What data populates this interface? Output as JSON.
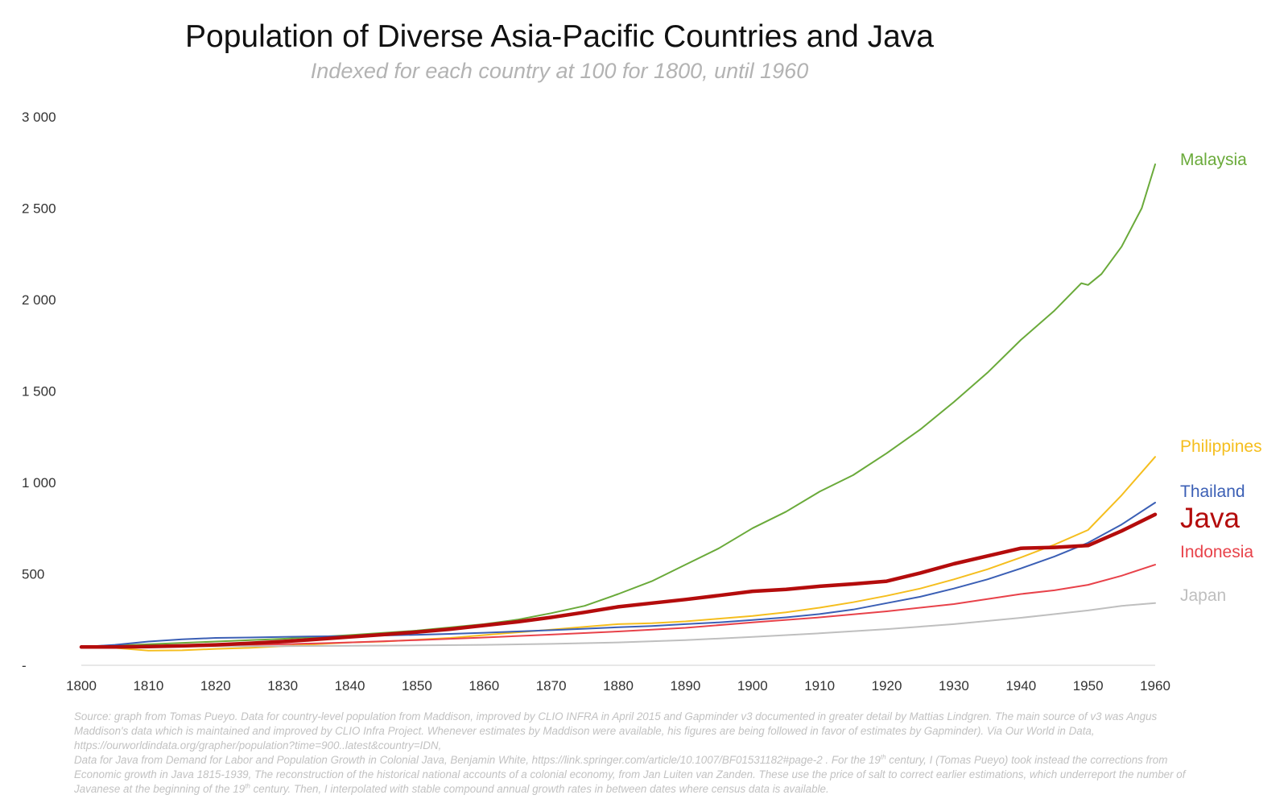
{
  "chart_data": {
    "type": "line",
    "title": "Population of Diverse Asia-Pacific Countries and Java",
    "subtitle": "Indexed for each country at 100 for 1800, until 1960",
    "xlabel": "",
    "ylabel": "",
    "xlim": [
      1800,
      1960
    ],
    "ylim": [
      0,
      3000
    ],
    "x_ticks": [
      1800,
      1810,
      1820,
      1830,
      1840,
      1850,
      1860,
      1870,
      1880,
      1890,
      1900,
      1910,
      1920,
      1930,
      1940,
      1950,
      1960
    ],
    "x_tick_labels": [
      "1800",
      "1810",
      "1820",
      "1830",
      "1840",
      "1850",
      "1860",
      "1870",
      "1880",
      "1890",
      "1900",
      "1910",
      "1920",
      "1930",
      "1940",
      "1950",
      "1960"
    ],
    "y_ticks": [
      0,
      500,
      1000,
      1500,
      2000,
      2500,
      3000
    ],
    "y_tick_labels": [
      "-",
      "500",
      "1 000",
      "1 500",
      "2 000",
      "2 500",
      "3 000"
    ],
    "grid": false,
    "legend": "inline labels at line ends (right)",
    "series": [
      {
        "name": "Malaysia",
        "color": "#6aaa3a",
        "emphasis": false,
        "points": [
          [
            1800,
            100
          ],
          [
            1810,
            115
          ],
          [
            1820,
            130
          ],
          [
            1830,
            145
          ],
          [
            1840,
            165
          ],
          [
            1850,
            190
          ],
          [
            1860,
            225
          ],
          [
            1865,
            250
          ],
          [
            1870,
            285
          ],
          [
            1875,
            325
          ],
          [
            1880,
            390
          ],
          [
            1885,
            460
          ],
          [
            1890,
            550
          ],
          [
            1895,
            640
          ],
          [
            1900,
            750
          ],
          [
            1905,
            840
          ],
          [
            1910,
            950
          ],
          [
            1915,
            1040
          ],
          [
            1920,
            1160
          ],
          [
            1925,
            1290
          ],
          [
            1930,
            1440
          ],
          [
            1935,
            1600
          ],
          [
            1940,
            1780
          ],
          [
            1945,
            1940
          ],
          [
            1949,
            2090
          ],
          [
            1950,
            2080
          ],
          [
            1952,
            2140
          ],
          [
            1955,
            2290
          ],
          [
            1958,
            2500
          ],
          [
            1960,
            2740
          ]
        ]
      },
      {
        "name": "Philippines",
        "color": "#f5be1e",
        "emphasis": false,
        "points": [
          [
            1800,
            100
          ],
          [
            1805,
            95
          ],
          [
            1810,
            80
          ],
          [
            1815,
            82
          ],
          [
            1820,
            90
          ],
          [
            1825,
            95
          ],
          [
            1830,
            105
          ],
          [
            1835,
            115
          ],
          [
            1840,
            125
          ],
          [
            1845,
            130
          ],
          [
            1850,
            140
          ],
          [
            1855,
            150
          ],
          [
            1860,
            165
          ],
          [
            1865,
            180
          ],
          [
            1870,
            195
          ],
          [
            1875,
            210
          ],
          [
            1880,
            225
          ],
          [
            1885,
            230
          ],
          [
            1890,
            240
          ],
          [
            1895,
            255
          ],
          [
            1900,
            270
          ],
          [
            1905,
            290
          ],
          [
            1910,
            315
          ],
          [
            1915,
            345
          ],
          [
            1920,
            380
          ],
          [
            1925,
            420
          ],
          [
            1930,
            470
          ],
          [
            1935,
            525
          ],
          [
            1940,
            590
          ],
          [
            1945,
            660
          ],
          [
            1950,
            740
          ],
          [
            1955,
            930
          ],
          [
            1960,
            1140
          ]
        ]
      },
      {
        "name": "Thailand",
        "color": "#3b5fb5",
        "emphasis": false,
        "points": [
          [
            1800,
            100
          ],
          [
            1805,
            112
          ],
          [
            1810,
            130
          ],
          [
            1815,
            142
          ],
          [
            1820,
            150
          ],
          [
            1825,
            152
          ],
          [
            1830,
            155
          ],
          [
            1835,
            158
          ],
          [
            1840,
            160
          ],
          [
            1845,
            163
          ],
          [
            1850,
            167
          ],
          [
            1855,
            172
          ],
          [
            1860,
            178
          ],
          [
            1865,
            185
          ],
          [
            1870,
            192
          ],
          [
            1875,
            200
          ],
          [
            1880,
            208
          ],
          [
            1885,
            215
          ],
          [
            1890,
            225
          ],
          [
            1895,
            235
          ],
          [
            1900,
            248
          ],
          [
            1905,
            262
          ],
          [
            1910,
            280
          ],
          [
            1915,
            305
          ],
          [
            1920,
            340
          ],
          [
            1925,
            375
          ],
          [
            1930,
            420
          ],
          [
            1935,
            470
          ],
          [
            1940,
            530
          ],
          [
            1945,
            595
          ],
          [
            1950,
            670
          ],
          [
            1955,
            770
          ],
          [
            1960,
            890
          ]
        ]
      },
      {
        "name": "Java",
        "color": "#b40c0c",
        "emphasis": true,
        "points": [
          [
            1800,
            100
          ],
          [
            1805,
            100
          ],
          [
            1810,
            102
          ],
          [
            1815,
            106
          ],
          [
            1820,
            112
          ],
          [
            1825,
            120
          ],
          [
            1830,
            130
          ],
          [
            1835,
            142
          ],
          [
            1840,
            155
          ],
          [
            1845,
            168
          ],
          [
            1850,
            182
          ],
          [
            1855,
            198
          ],
          [
            1860,
            218
          ],
          [
            1865,
            238
          ],
          [
            1870,
            262
          ],
          [
            1875,
            290
          ],
          [
            1880,
            320
          ],
          [
            1885,
            340
          ],
          [
            1890,
            360
          ],
          [
            1895,
            382
          ],
          [
            1900,
            405
          ],
          [
            1905,
            415
          ],
          [
            1910,
            432
          ],
          [
            1915,
            445
          ],
          [
            1920,
            460
          ],
          [
            1925,
            505
          ],
          [
            1930,
            555
          ],
          [
            1935,
            598
          ],
          [
            1940,
            640
          ],
          [
            1945,
            645
          ],
          [
            1950,
            655
          ],
          [
            1955,
            735
          ],
          [
            1960,
            825
          ]
        ]
      },
      {
        "name": "Indonesia",
        "color": "#e8424a",
        "emphasis": false,
        "points": [
          [
            1800,
            100
          ],
          [
            1810,
            103
          ],
          [
            1820,
            108
          ],
          [
            1830,
            115
          ],
          [
            1840,
            125
          ],
          [
            1850,
            138
          ],
          [
            1860,
            152
          ],
          [
            1870,
            168
          ],
          [
            1880,
            185
          ],
          [
            1890,
            205
          ],
          [
            1900,
            235
          ],
          [
            1910,
            262
          ],
          [
            1920,
            295
          ],
          [
            1930,
            335
          ],
          [
            1940,
            390
          ],
          [
            1945,
            410
          ],
          [
            1950,
            440
          ],
          [
            1955,
            490
          ],
          [
            1960,
            550
          ]
        ]
      },
      {
        "name": "Japan",
        "color": "#bfbfbf",
        "emphasis": false,
        "points": [
          [
            1800,
            100
          ],
          [
            1810,
            102
          ],
          [
            1820,
            104
          ],
          [
            1830,
            105
          ],
          [
            1840,
            107
          ],
          [
            1850,
            109
          ],
          [
            1860,
            112
          ],
          [
            1870,
            117
          ],
          [
            1880,
            125
          ],
          [
            1890,
            138
          ],
          [
            1900,
            155
          ],
          [
            1910,
            175
          ],
          [
            1920,
            198
          ],
          [
            1930,
            225
          ],
          [
            1940,
            260
          ],
          [
            1950,
            300
          ],
          [
            1955,
            325
          ],
          [
            1960,
            340
          ]
        ]
      }
    ]
  },
  "source_note": {
    "line1": "Source: graph from Tomas Pueyo. Data for country-level population from Maddison, improved by CLIO INFRA in April 2015 and Gapminder v3  documented in greater detail by Mattias Lindgren. The main source of v3 was Angus Maddison's data which is maintained and improved by CLIO Infra Project. Whenever estimates by Maddison were available, his figures are being followed in favor of estimates by Gapminder). Via Our World in Data, https://ourworldindata.org/grapher/population?time=900..latest&country=IDN,",
    "line2_a": "Data for Java from Demand for Labor and Population Growth in Colonial Java, Benjamin White, https://link.springer.com/article/10.1007/BF01531182#page-2 . For the 19",
    "line2_sup": "th",
    "line2_b": " century, I (Tomas Pueyo) took instead the corrections from Economic growth in Java 1815-1939, The reconstruction of the historical national accounts of a colonial economy, from Jan Luiten van Zanden. These use the price of salt to correct earlier estimations, which underreport the number of Javanese at the beginning of the 19",
    "line2_sup2": "th",
    "line2_c": " century. Then, I interpolated with stable compound annual growth rates in between dates where census data is available."
  }
}
